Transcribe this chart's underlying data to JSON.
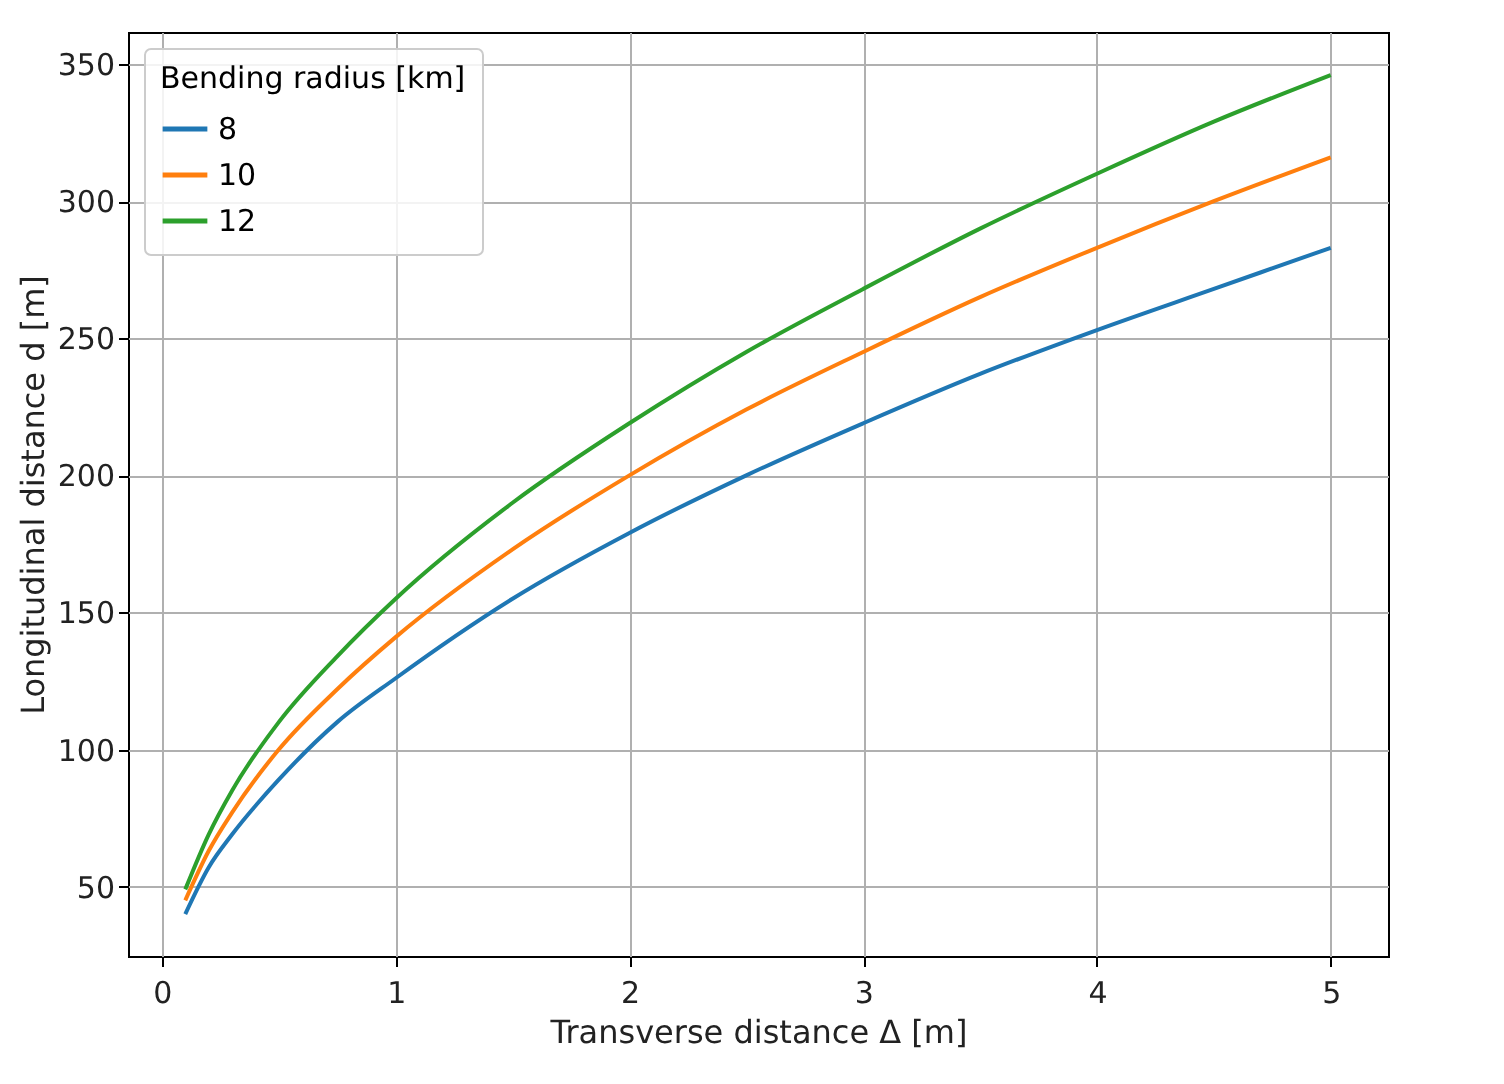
{
  "chart_data": {
    "type": "line",
    "xlabel": "Transverse distance Δ [m]",
    "ylabel": "Longitudinal distance d [m]",
    "legend_title": "Bending radius [km]",
    "legend": "top left",
    "grid": true,
    "line_style": "solid",
    "x": [
      0.1,
      0.2,
      0.3,
      0.5,
      0.75,
      1,
      1.5,
      2,
      2.5,
      3,
      3.5,
      4,
      4.5,
      5
    ],
    "xlim": [
      -0.145,
      5.245
    ],
    "xticks": [
      0,
      1,
      2,
      3,
      4,
      5
    ],
    "ylim": [
      24.7,
      361.7
    ],
    "yticks": [
      50,
      100,
      150,
      200,
      250,
      300,
      350
    ],
    "series": [
      {
        "name": "8",
        "color": "#1f77b4",
        "values": [
          40,
          57,
          69,
          89,
          110,
          126,
          155,
          179,
          200,
          219,
          237,
          253,
          268,
          283
        ]
      },
      {
        "name": "10",
        "color": "#ff7f0e",
        "values": [
          45,
          63,
          77,
          100,
          122,
          141,
          173,
          200,
          224,
          245,
          265,
          283,
          300,
          316
        ]
      },
      {
        "name": "12",
        "color": "#2ca02c",
        "values": [
          49,
          69,
          85,
          110,
          134,
          155,
          190,
          219,
          245,
          268,
          290,
          310,
          329,
          346
        ]
      }
    ]
  }
}
